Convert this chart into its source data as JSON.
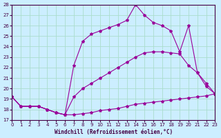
{
  "xlabel": "Windchill (Refroidissement éolien,°C)",
  "bg_color": "#cceeff",
  "grid_color": "#aaddcc",
  "line_color": "#990099",
  "xlim": [
    0,
    23
  ],
  "ylim": [
    17,
    28
  ],
  "yticks": [
    17,
    18,
    19,
    20,
    21,
    22,
    23,
    24,
    25,
    26,
    27,
    28
  ],
  "xticks": [
    0,
    1,
    2,
    3,
    4,
    5,
    6,
    7,
    8,
    9,
    10,
    11,
    12,
    13,
    14,
    15,
    16,
    17,
    18,
    19,
    20,
    21,
    22,
    23
  ],
  "line1_x": [
    0,
    1,
    2,
    3,
    4,
    5,
    6,
    7,
    8,
    9,
    10,
    11,
    12,
    13,
    14,
    15,
    16,
    17,
    18,
    19,
    20,
    21,
    22,
    23
  ],
  "line1_y": [
    19.2,
    18.3,
    18.3,
    18.3,
    18.0,
    17.7,
    17.5,
    17.5,
    17.6,
    17.7,
    17.9,
    18.0,
    18.1,
    18.3,
    18.5,
    18.6,
    18.7,
    18.8,
    18.9,
    19.0,
    19.1,
    19.2,
    19.3,
    19.5
  ],
  "line2_x": [
    0,
    1,
    2,
    3,
    4,
    5,
    6,
    7,
    8,
    9,
    10,
    11,
    12,
    13,
    14,
    15,
    16,
    17,
    18,
    19,
    20,
    21,
    22,
    23
  ],
  "line2_y": [
    19.2,
    18.3,
    18.3,
    18.3,
    18.0,
    17.7,
    17.5,
    22.2,
    24.5,
    25.2,
    25.5,
    25.8,
    26.1,
    26.5,
    28.0,
    27.0,
    26.3,
    26.0,
    25.5,
    23.5,
    26.0,
    21.5,
    20.2,
    19.5
  ],
  "line3_x": [
    0,
    1,
    2,
    3,
    4,
    5,
    6,
    7,
    8,
    9,
    10,
    11,
    12,
    13,
    14,
    15,
    16,
    17,
    18,
    19,
    20,
    21,
    22,
    23
  ],
  "line3_y": [
    19.2,
    18.3,
    18.3,
    18.3,
    18.0,
    17.7,
    17.5,
    19.2,
    20.0,
    20.5,
    21.0,
    21.5,
    22.0,
    22.5,
    23.0,
    23.4,
    23.5,
    23.5,
    23.4,
    23.3,
    22.2,
    21.5,
    20.5,
    19.5
  ]
}
